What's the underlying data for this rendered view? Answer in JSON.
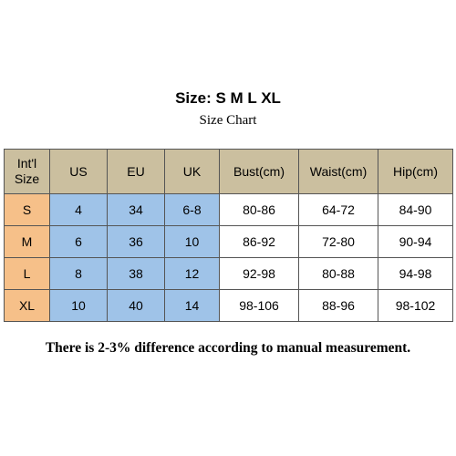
{
  "header": {
    "title": "Size: S M L XL",
    "subtitle": "Size Chart"
  },
  "table": {
    "columns": [
      "Int'l Size",
      "US",
      "EU",
      "UK",
      "Bust(cm)",
      "Waist(cm)",
      "Hip(cm)"
    ],
    "rows": [
      [
        "S",
        "4",
        "34",
        "6-8",
        "80-86",
        "64-72",
        "84-90"
      ],
      [
        "M",
        "6",
        "36",
        "10",
        "86-92",
        "72-80",
        "90-94"
      ],
      [
        "L",
        "8",
        "38",
        "12",
        "92-98",
        "80-88",
        "94-98"
      ],
      [
        "XL",
        "10",
        "40",
        "14",
        "98-106",
        "88-96",
        "98-102"
      ]
    ]
  },
  "footer": {
    "note": "There is 2-3% difference according to manual measurement."
  }
}
